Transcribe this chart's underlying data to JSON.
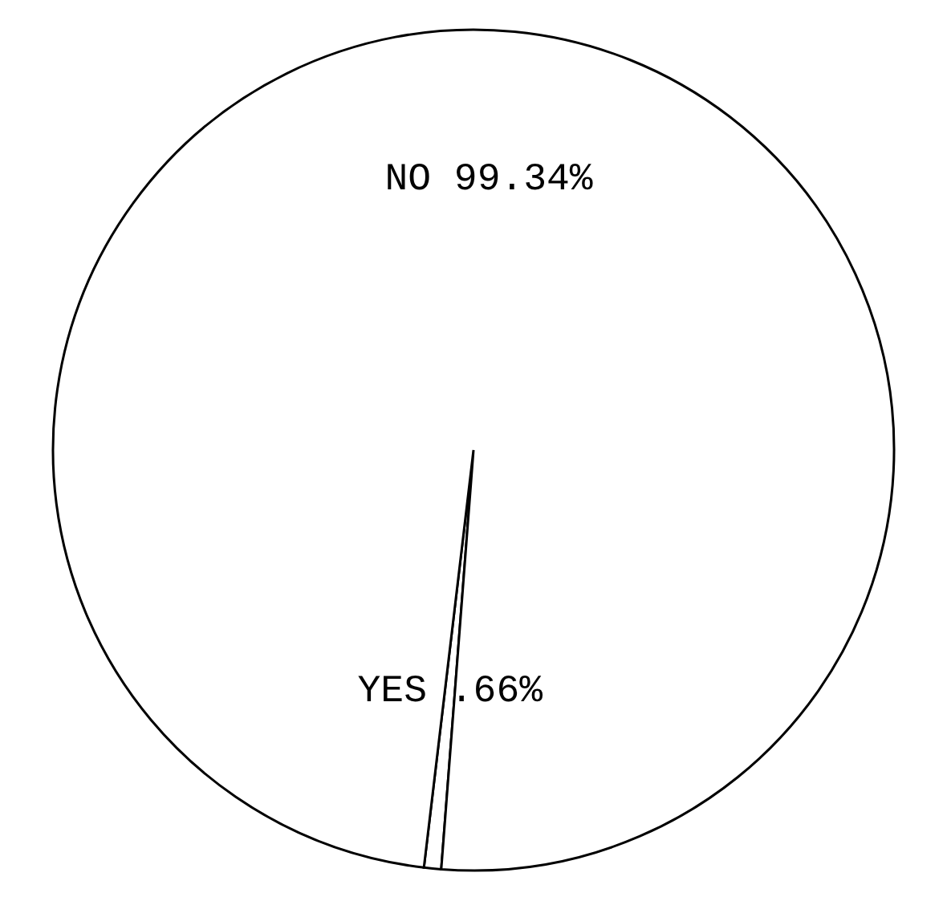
{
  "chart_data": {
    "type": "pie",
    "categories": [
      "NO",
      "YES"
    ],
    "values": [
      99.34,
      0.66
    ],
    "colors": [
      "#ffffff",
      "#ffffff"
    ],
    "value_labels": [
      "99.34%",
      ".66%"
    ],
    "legend": false
  }
}
